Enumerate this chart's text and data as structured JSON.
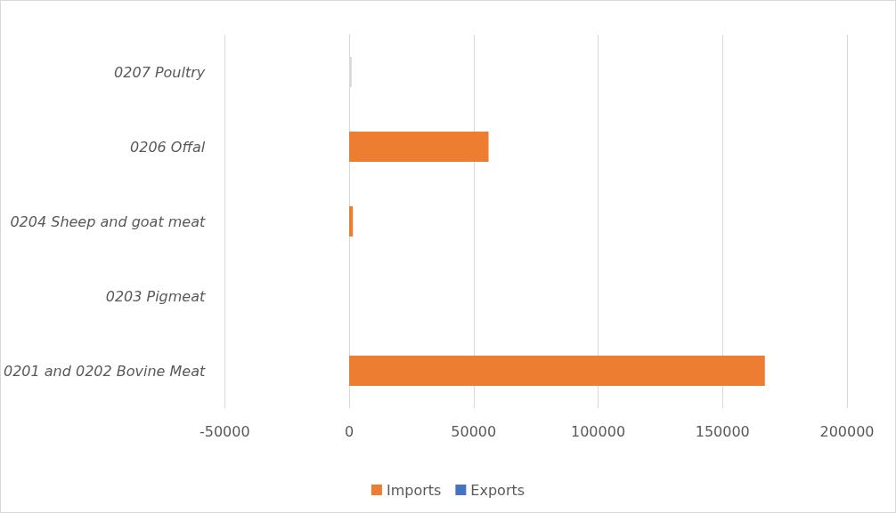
{
  "chart_data": {
    "type": "bar",
    "orientation": "horizontal",
    "categories": [
      "0207 Poultry",
      "0206 Offal",
      "0204 Sheep and goat meat",
      "0203 Pigmeat",
      "0201 and 0202 Bovine Meat"
    ],
    "series": [
      {
        "name": "Imports",
        "color": "#ed7d31",
        "colors": [
          "#d9d9d9",
          "#ed7d31",
          "#ed7d31",
          "#e7e6e6",
          "#ed7d31"
        ],
        "values": [
          1000,
          56000,
          1500,
          null,
          167000
        ]
      },
      {
        "name": "Exports",
        "color": "#4472c4",
        "values": [
          0,
          0,
          0,
          0,
          0
        ]
      }
    ],
    "xlim": [
      -50000,
      200000
    ],
    "xticks": [
      -50000,
      0,
      50000,
      100000,
      150000,
      200000
    ],
    "grid": "x",
    "legend": "bottom"
  }
}
